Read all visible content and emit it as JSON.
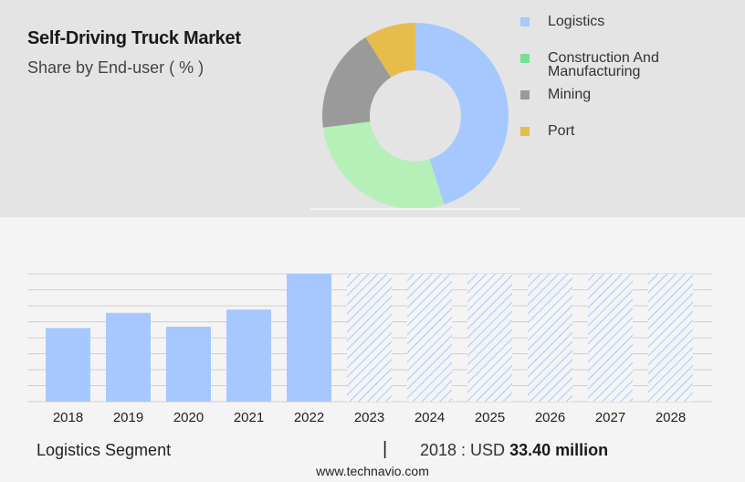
{
  "title": "Self-Driving Truck Market",
  "subtitle": "Share by End-user ( % )",
  "colors": {
    "top_background": "#e4e4e4",
    "bottom_background": "#f4f4f4",
    "bar": "#a6c8ff",
    "forecast_hatch": "#a6c8ff",
    "grid": "#d0d0d0"
  },
  "chart_data": [
    {
      "type": "pie",
      "variant": "donut",
      "title": "",
      "categories": [
        "Logistics",
        "Construction And Manufacturing",
        "Mining",
        "Port"
      ],
      "values": [
        45,
        28,
        18,
        9
      ],
      "colors": [
        "#a6c8ff",
        "#b4f0b8",
        "#9a9a9a",
        "#e6bc4d"
      ],
      "legend": {
        "placement": "right",
        "swatch_colors": [
          "#a6c8ff",
          "#74e091",
          "#9a9a9a",
          "#e6bc4d"
        ]
      }
    },
    {
      "type": "bar",
      "title": "",
      "categories": [
        "2018",
        "2019",
        "2020",
        "2021",
        "2022",
        "2023",
        "2024",
        "2025",
        "2026",
        "2027",
        "2028"
      ],
      "values": [
        33.4,
        40.3,
        34.0,
        41.8,
        58.0,
        null,
        null,
        null,
        null,
        null,
        null
      ],
      "forecast": [
        false,
        false,
        false,
        false,
        false,
        true,
        true,
        true,
        true,
        true,
        true
      ],
      "xlabel": "",
      "ylabel": "",
      "ylim": [
        0,
        58
      ],
      "grid": true
    }
  ],
  "footer": {
    "segment": "Logistics Segment",
    "divider": "|",
    "value_prefix": "2018 : USD",
    "value_amount": "33.40 million",
    "url": "www.technavio.com"
  }
}
